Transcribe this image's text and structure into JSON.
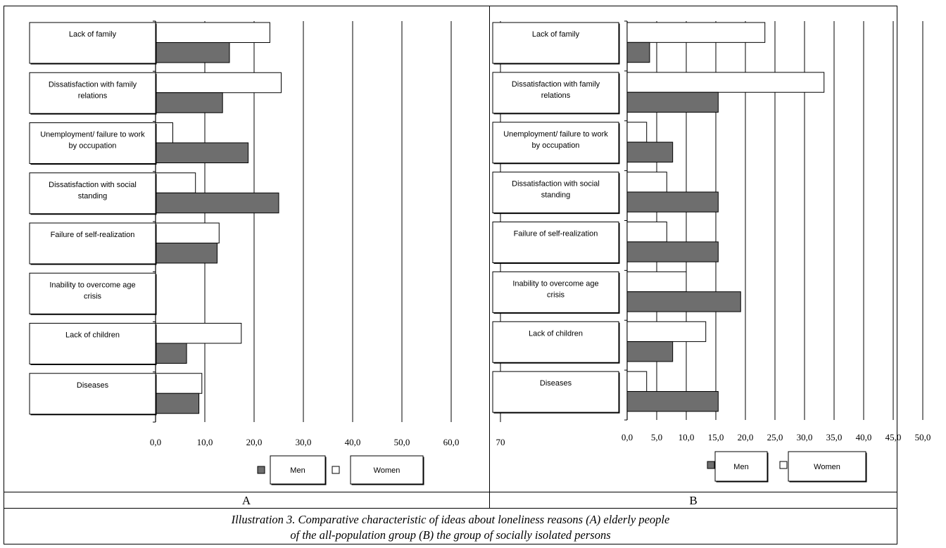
{
  "caption": {
    "line1": "Illustration 3. Comparative characteristic of ideas about loneliness reasons (A) elderly people",
    "line2": "of the all-population group (B) the group of socially isolated persons"
  },
  "colors": {
    "men": "#6e6e6e",
    "women": "#ffffff",
    "outline": "#000000",
    "grid": "#000000"
  },
  "chart_data": [
    {
      "type": "bar",
      "orientation": "horizontal",
      "panel_label": "A",
      "categories": [
        "Lack of family",
        "Dissatisfaction with family relations",
        "Unemployment/ failure to work by occupation",
        "Dissatisfaction with social standing",
        "Failure of self-realization",
        "Inability to overcome age crisis",
        "Lack of children",
        "Diseases"
      ],
      "series": [
        {
          "name": "Women",
          "values": [
            23.2,
            25.5,
            3.5,
            8.1,
            12.9,
            0,
            17.4,
            9.4
          ]
        },
        {
          "name": "Men",
          "values": [
            15.0,
            13.6,
            18.8,
            25.0,
            12.5,
            0,
            6.3,
            8.8
          ]
        }
      ],
      "xticks": [
        "0,0",
        "10,0",
        "20,0",
        "30,0",
        "40,0",
        "50,0",
        "60,0",
        "70"
      ],
      "xlim": [
        0,
        70
      ],
      "grid": true,
      "legend": {
        "position": "bottom",
        "labels": [
          "Men",
          "Women"
        ]
      }
    },
    {
      "type": "bar",
      "orientation": "horizontal",
      "panel_label": "B",
      "categories": [
        "Lack of family",
        "Dissatisfaction with family relations",
        "Unemployment/ failure to work by occupation",
        "Dissatisfaction with social standing",
        "Failure of self-realization",
        "Inability to overcome age crisis",
        "Lack of children",
        "Diseases"
      ],
      "series": [
        {
          "name": "Women",
          "values": [
            23.3,
            33.3,
            3.3,
            6.7,
            6.7,
            10.0,
            13.3,
            3.3
          ]
        },
        {
          "name": "Men",
          "values": [
            3.8,
            15.4,
            7.7,
            15.4,
            15.4,
            19.2,
            7.7,
            15.4
          ]
        }
      ],
      "xticks": [
        "0,0",
        "5,0",
        "10,0",
        "15,0",
        "20,0",
        "25,0",
        "30,0",
        "35,0",
        "40,0",
        "45,0",
        "50,0"
      ],
      "xlim": [
        0,
        50
      ],
      "grid": true,
      "legend": {
        "position": "bottom",
        "labels": [
          "Men",
          "Women"
        ]
      }
    }
  ]
}
